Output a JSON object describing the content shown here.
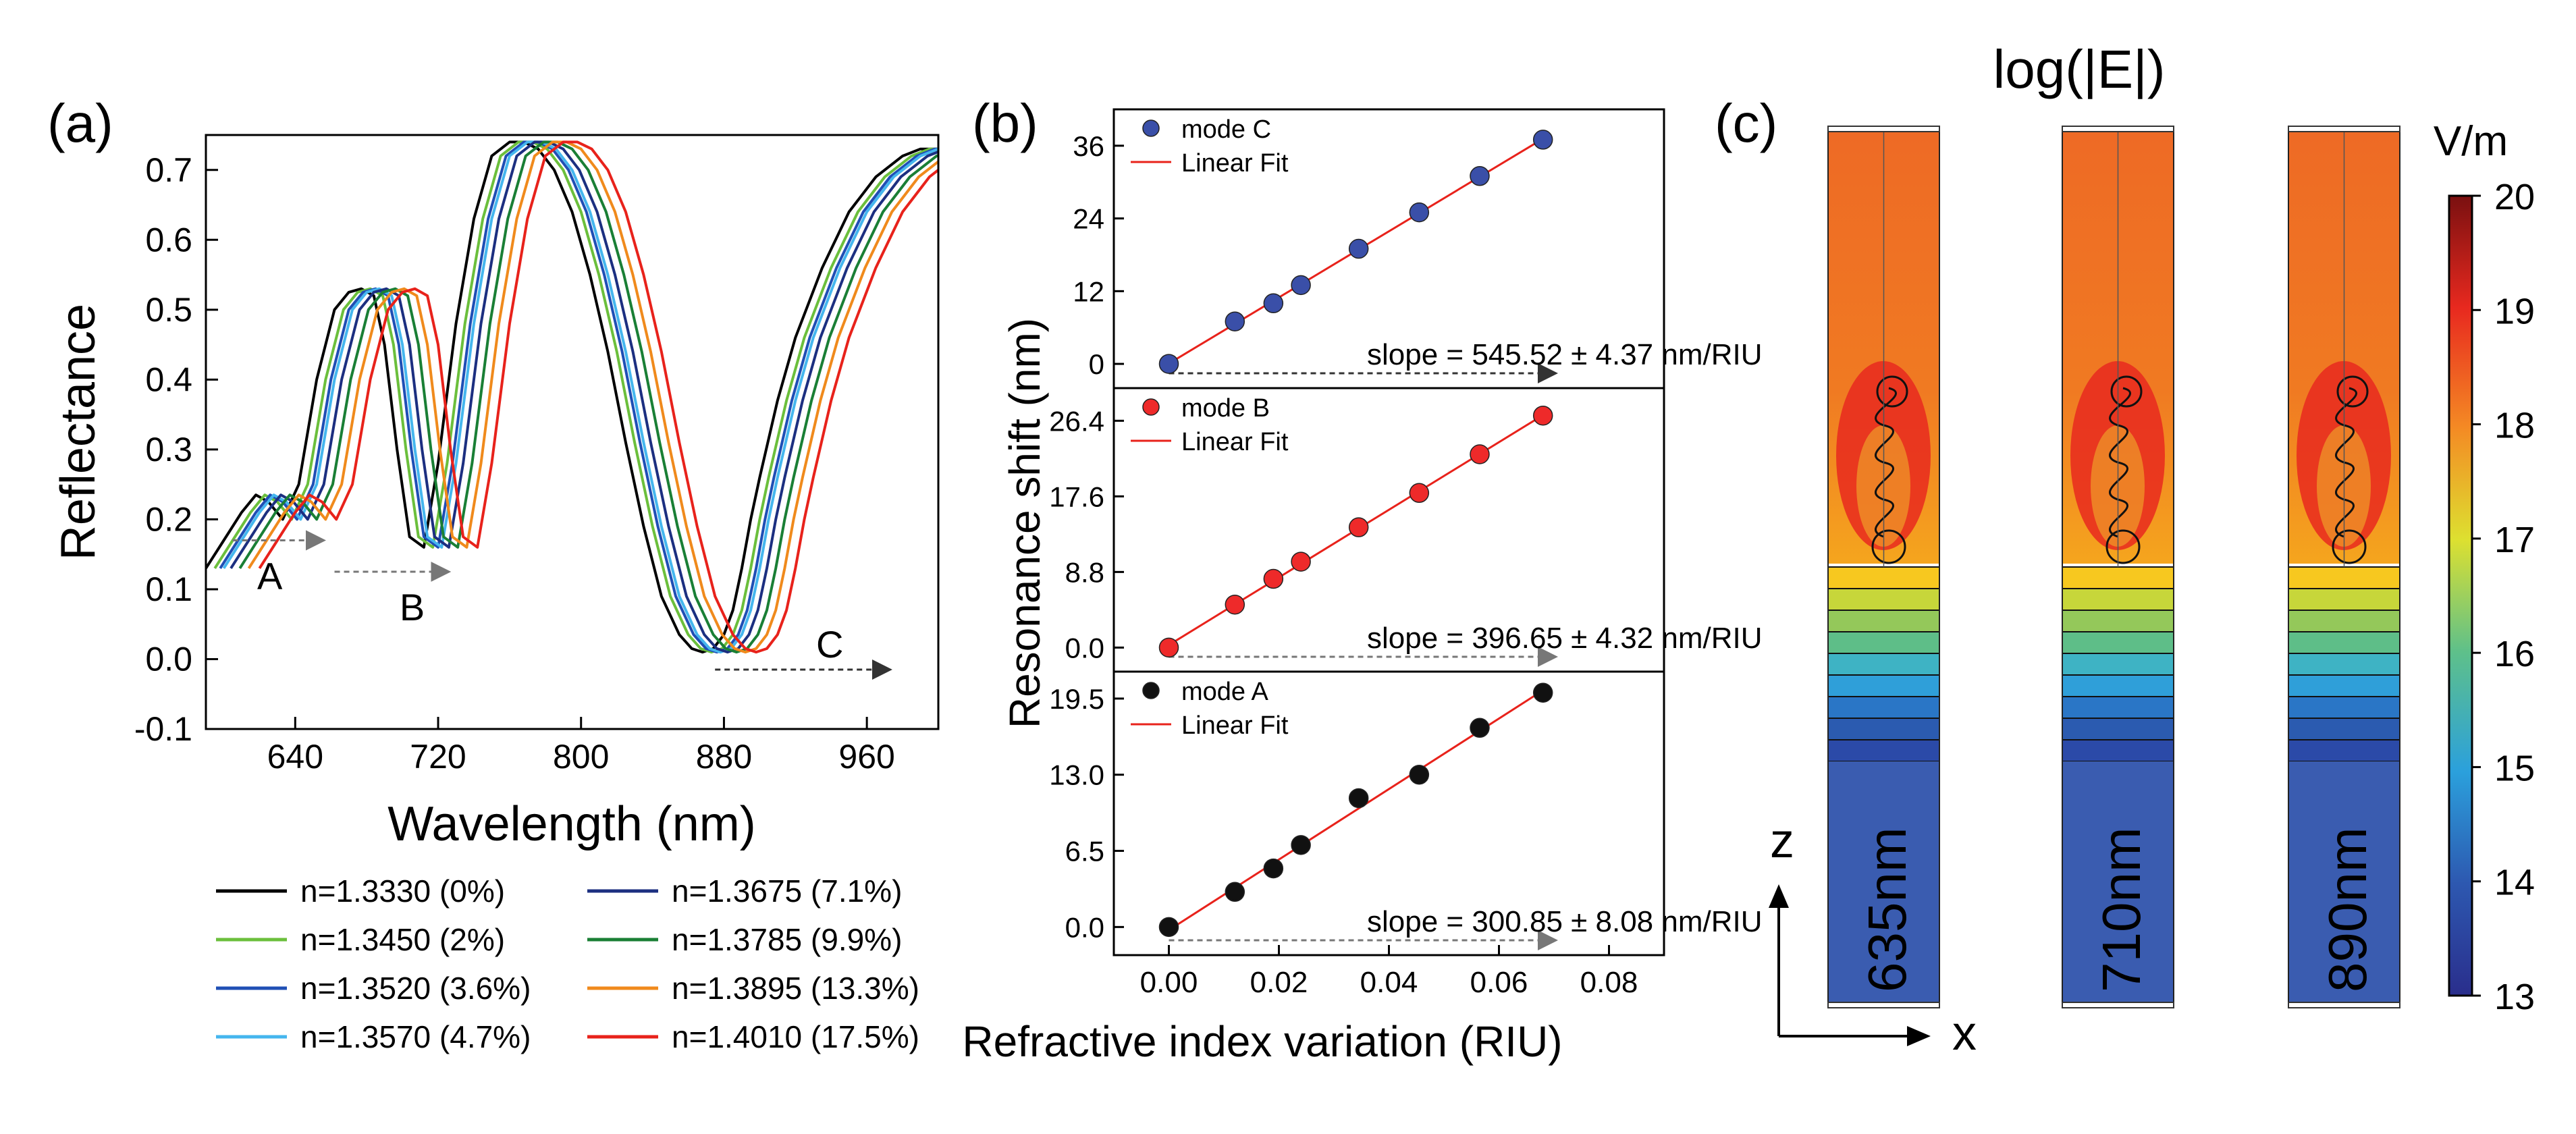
{
  "chart_data": [
    {
      "panel": "(a)",
      "type": "line",
      "xlabel": "Wavelength (nm)",
      "ylabel": "Reflectance",
      "xlim": [
        590,
        1000
      ],
      "ylim": [
        -0.1,
        0.75
      ],
      "xticks": [
        "640",
        "720",
        "800",
        "880",
        "960"
      ],
      "yticks": [
        "-0.1",
        "0.0",
        "0.1",
        "0.2",
        "0.3",
        "0.4",
        "0.5",
        "0.6",
        "0.7"
      ],
      "annotations": [
        {
          "label": "A",
          "arrow_from_nm": 605,
          "arrow_to_nm": 655,
          "y": 0.17
        },
        {
          "label": "B",
          "arrow_from_nm": 662,
          "arrow_to_nm": 725,
          "y": 0.125
        },
        {
          "label": "C",
          "arrow_from_nm": 875,
          "arrow_to_nm": 972,
          "y": -0.015
        }
      ],
      "series": [
        {
          "name": "n=1.3330 (0%)",
          "shift_nm": 0,
          "color": "#000000"
        },
        {
          "name": "n=1.3450 (2%)",
          "shift_nm": 5,
          "color": "#6bbf3c"
        },
        {
          "name": "n=1.3520 (3.6%)",
          "shift_nm": 8,
          "color": "#1f4fb5"
        },
        {
          "name": "n=1.3570 (4.7%)",
          "shift_nm": 10,
          "color": "#45b6ee"
        },
        {
          "name": "n=1.3675 (7.1%)",
          "shift_nm": 14,
          "color": "#1c2f80"
        },
        {
          "name": "n=1.3785 (9.9%)",
          "shift_nm": 19,
          "color": "#1a7f35"
        },
        {
          "name": "n=1.3895 (13.3%)",
          "shift_nm": 24,
          "color": "#f08a1c"
        },
        {
          "name": "n=1.4010 (17.5%)",
          "shift_nm": 30,
          "color": "#e8221b"
        }
      ],
      "reference_curve": {
        "x": [
          590,
          600,
          610,
          618,
          625,
          633,
          642,
          652,
          662,
          670,
          677,
          684,
          690,
          697,
          704,
          712,
          720,
          730,
          740,
          750,
          760,
          768,
          776,
          785,
          795,
          805,
          815,
          825,
          835,
          845,
          855,
          862,
          868,
          874,
          880,
          885,
          890,
          895,
          900,
          910,
          920,
          935,
          950,
          965,
          980,
          990,
          1000
        ],
        "y": [
          0.13,
          0.17,
          0.21,
          0.235,
          0.225,
          0.2,
          0.25,
          0.4,
          0.5,
          0.525,
          0.53,
          0.52,
          0.45,
          0.3,
          0.175,
          0.16,
          0.28,
          0.48,
          0.63,
          0.72,
          0.74,
          0.74,
          0.73,
          0.7,
          0.64,
          0.55,
          0.44,
          0.31,
          0.19,
          0.09,
          0.035,
          0.015,
          0.01,
          0.015,
          0.035,
          0.07,
          0.13,
          0.2,
          0.26,
          0.37,
          0.46,
          0.56,
          0.64,
          0.69,
          0.72,
          0.73,
          0.73
        ]
      }
    },
    {
      "panel": "(b)",
      "type": "scatter",
      "xlabel": "Refractive index variation (RIU)",
      "ylabel": "Resonance shift (nm)",
      "xlim": [
        -0.01,
        0.09
      ],
      "xticks": [
        "0.00",
        "0.02",
        "0.04",
        "0.06",
        "0.08"
      ],
      "x": [
        0.0,
        0.012,
        0.019,
        0.024,
        0.0345,
        0.0455,
        0.0565,
        0.068
      ],
      "subplots": [
        {
          "name": "mode C",
          "fit_label": "Linear Fit",
          "slope_text": "slope = 545.52 ± 4.37 nm/RIU",
          "color": "#3a4fa8",
          "ylim": [
            -4,
            42
          ],
          "yticks": [
            0,
            12,
            24,
            36
          ],
          "ytick_labels": [
            "0",
            "12",
            "24",
            "36"
          ],
          "values": [
            0,
            7,
            10,
            13,
            19,
            25,
            31,
            37
          ]
        },
        {
          "name": "mode B",
          "fit_label": "Linear Fit",
          "slope_text": "slope = 396.65 ± 4.32 nm/RIU",
          "color": "#ee2a2a",
          "ylim": [
            -2.8,
            30.2
          ],
          "yticks": [
            0,
            8.8,
            17.6,
            26.4
          ],
          "ytick_labels": [
            "0.0",
            "8.8",
            "17.6",
            "26.4"
          ],
          "values": [
            0,
            5,
            8,
            10,
            14,
            18,
            22.5,
            27
          ]
        },
        {
          "name": "mode A",
          "fit_label": "Linear Fit",
          "slope_text": "slope = 300.85 ± 8.08 nm/RIU",
          "color": "#111111",
          "ylim": [
            -2.4,
            21.8
          ],
          "yticks": [
            0,
            6.5,
            13,
            19.5
          ],
          "ytick_labels": [
            "0.0",
            "6.5",
            "13.0",
            "19.5"
          ],
          "values": [
            0,
            3,
            5,
            7,
            11,
            13,
            17,
            20
          ]
        }
      ]
    },
    {
      "panel": "(c)",
      "type": "heatmap",
      "title": "log(|E|)",
      "colorbar_unit": "V/m",
      "colorbar_range": [
        13,
        20
      ],
      "colorbar_ticks": [
        "20",
        "19",
        "18",
        "17",
        "16",
        "15",
        "14",
        "13"
      ],
      "columns": [
        "635nm",
        "710nm",
        "890nm"
      ],
      "axis_z": "z",
      "axis_x": "x"
    }
  ],
  "panel_labels": {
    "a": "(a)",
    "b": "(b)",
    "c": "(c)"
  },
  "annotation_labels": {
    "A": "A",
    "B": "B",
    "C": "C"
  }
}
